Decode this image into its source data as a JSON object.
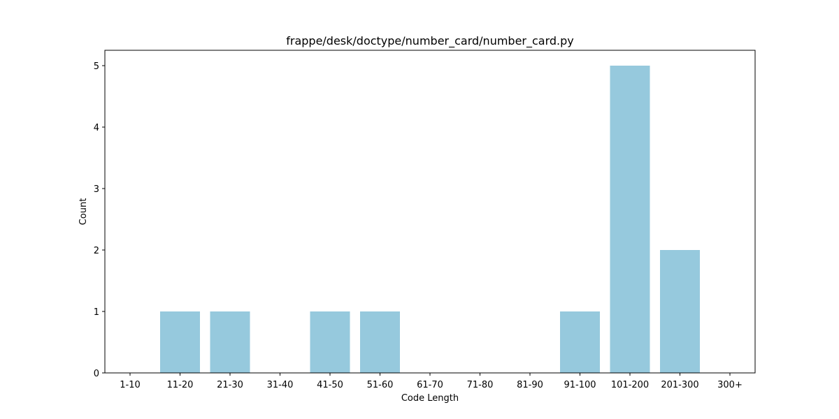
{
  "chart_data": {
    "type": "bar",
    "title": "frappe/desk/doctype/number_card/number_card.py",
    "xlabel": "Code Length",
    "ylabel": "Count",
    "categories": [
      "1-10",
      "11-20",
      "21-30",
      "31-40",
      "41-50",
      "51-60",
      "61-70",
      "71-80",
      "81-90",
      "91-100",
      "101-200",
      "201-300",
      "300+"
    ],
    "values": [
      0,
      1,
      1,
      0,
      1,
      1,
      0,
      0,
      0,
      1,
      5,
      2,
      0
    ],
    "ylim": [
      0,
      5.25
    ],
    "yticks": [
      "0",
      "1",
      "2",
      "3",
      "4",
      "5"
    ],
    "bar_color": "#96c9dd",
    "grid": false,
    "legend": "none"
  }
}
